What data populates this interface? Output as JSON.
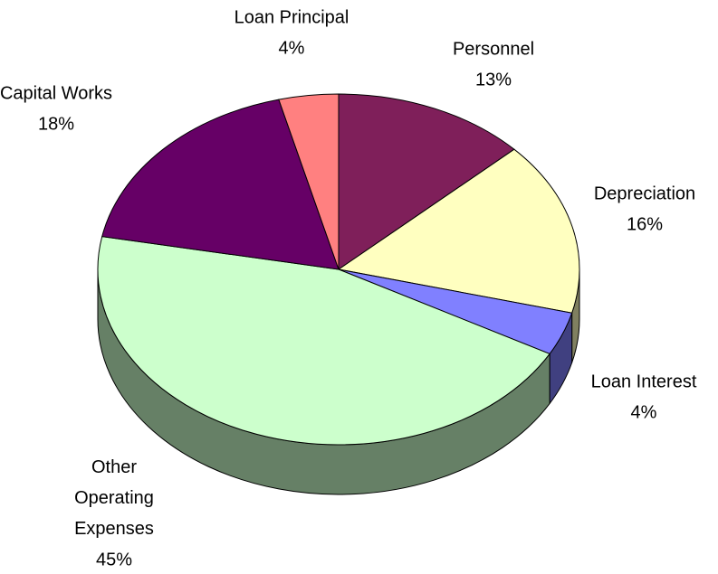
{
  "chart_data": {
    "type": "pie",
    "categories": [
      "Personnel",
      "Depreciation",
      "Loan Interest",
      "Other Operating Expenses",
      "Capital Works",
      "Loan Principal"
    ],
    "values": [
      13,
      16,
      4,
      45,
      18,
      4
    ],
    "value_labels": [
      "13%",
      "16%",
      "4%",
      "45%",
      "18%",
      "4%"
    ],
    "colors": [
      "#7f1f5a",
      "#ffffc0",
      "#8080ff",
      "#ccffcc",
      "#660066",
      "#ff8080"
    ]
  }
}
